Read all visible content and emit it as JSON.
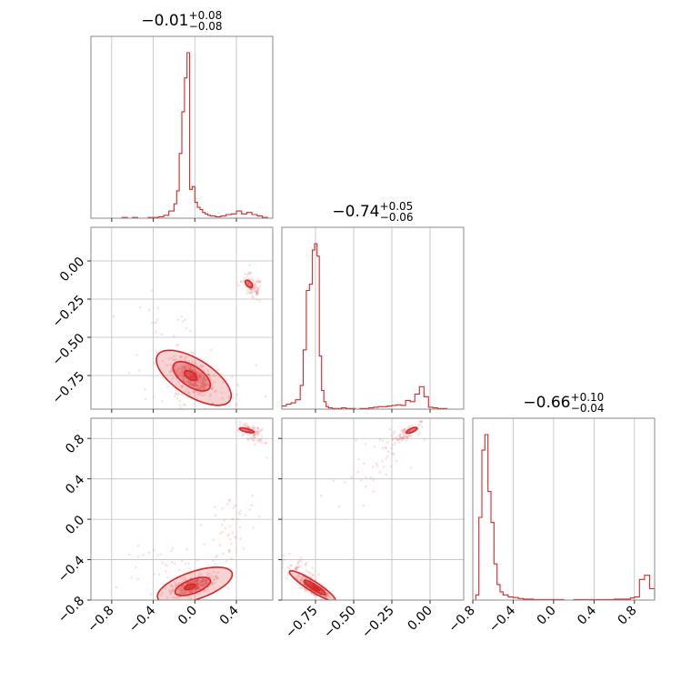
{
  "colors": {
    "accent": "#d62728",
    "grid": "#bdbdbd",
    "frame": "#888888"
  },
  "chart_data": {
    "type": "corner",
    "grid": true,
    "parameters": [
      {
        "range": [
          -1.0,
          0.75
        ],
        "ticks": [
          -0.8,
          -0.4,
          0.0,
          0.4
        ],
        "tick_labels": [
          "−0.8",
          "−0.4",
          "0.0",
          "0.4"
        ],
        "summary": {
          "median": "−0.01",
          "plus": "+0.08",
          "minus": "−0.08"
        },
        "histogram": {
          "bin_edges": [
            -1.0,
            -0.95,
            -0.9,
            -0.85,
            -0.8,
            -0.75,
            -0.7,
            -0.65,
            -0.6,
            -0.55,
            -0.5,
            -0.45,
            -0.4,
            -0.35,
            -0.3,
            -0.25,
            -0.2,
            -0.175,
            -0.15,
            -0.125,
            -0.1,
            -0.075,
            -0.05,
            -0.025,
            0.0,
            0.025,
            0.05,
            0.075,
            0.1,
            0.125,
            0.15,
            0.2,
            0.25,
            0.3,
            0.35,
            0.4,
            0.45,
            0.5,
            0.55,
            0.6,
            0.65,
            0.7,
            0.75
          ],
          "counts": [
            0,
            0,
            0,
            0,
            0,
            0,
            1,
            0,
            1,
            0,
            0,
            1,
            1,
            2,
            4,
            10,
            20,
            38,
            90,
            148,
            195,
            230,
            40,
            44,
            22,
            15,
            12,
            8,
            6,
            4,
            3,
            2,
            3,
            5,
            6,
            10,
            6,
            8,
            5,
            3,
            1,
            0
          ]
        }
      },
      {
        "range": [
          -0.97,
          0.22
        ],
        "ticks": [
          -0.75,
          -0.5,
          -0.25,
          0.0
        ],
        "tick_labels": [
          "−0.75",
          "−0.50",
          "−0.25",
          "0.00"
        ],
        "summary": {
          "median": "−0.74",
          "plus": "+0.05",
          "minus": "−0.06"
        },
        "histogram": {
          "bin_edges": [
            -0.97,
            -0.94,
            -0.91,
            -0.88,
            -0.85,
            -0.83,
            -0.81,
            -0.79,
            -0.77,
            -0.755,
            -0.74,
            -0.725,
            -0.71,
            -0.695,
            -0.68,
            -0.665,
            -0.64,
            -0.61,
            -0.58,
            -0.55,
            -0.52,
            -0.49,
            -0.46,
            -0.43,
            -0.4,
            -0.37,
            -0.34,
            -0.31,
            -0.28,
            -0.25,
            -0.22,
            -0.19,
            -0.16,
            -0.13,
            -0.1,
            -0.07,
            -0.04,
            -0.01,
            0.02,
            0.05,
            0.08,
            0.11,
            0.14,
            0.17,
            0.22
          ],
          "counts": [
            5,
            8,
            10,
            15,
            38,
            95,
            190,
            200,
            255,
            265,
            245,
            85,
            30,
            12,
            4,
            2,
            1,
            1,
            2,
            1,
            1,
            0,
            1,
            1,
            2,
            3,
            4,
            4,
            5,
            6,
            7,
            6,
            14,
            12,
            24,
            36,
            20,
            3,
            2,
            1,
            1,
            0,
            0,
            0
          ]
        }
      },
      {
        "range": [
          -0.8,
          1.0
        ],
        "ticks": [
          -0.8,
          -0.4,
          0.0,
          0.4,
          0.8
        ],
        "tick_labels": [
          "−0.8",
          "−0.4",
          "0.0",
          "0.4",
          "0.8"
        ],
        "summary": {
          "median": "−0.66",
          "plus": "+0.10",
          "minus": "−0.04"
        },
        "histogram": {
          "bin_edges": [
            -0.8,
            -0.77,
            -0.74,
            -0.71,
            -0.68,
            -0.65,
            -0.62,
            -0.59,
            -0.56,
            -0.53,
            -0.5,
            -0.45,
            -0.4,
            -0.35,
            -0.3,
            -0.2,
            -0.1,
            0.0,
            0.1,
            0.2,
            0.3,
            0.4,
            0.5,
            0.6,
            0.7,
            0.76,
            0.8,
            0.85,
            0.9,
            0.95,
            1.0
          ],
          "counts": [
            0,
            10,
            160,
            290,
            320,
            210,
            150,
            70,
            30,
            16,
            10,
            6,
            5,
            3,
            2,
            1,
            1,
            1,
            0,
            1,
            1,
            1,
            1,
            2,
            2,
            4,
            6,
            40,
            48,
            22
          ]
        }
      }
    ],
    "pairs": [
      {
        "row": 1,
        "col": 0,
        "clusters": [
          {
            "mean": [
              -0.02,
              -0.76
            ],
            "sd": [
              0.1,
              0.055
            ],
            "rho": -0.6,
            "n": 340
          },
          {
            "mean": [
              0.55,
              -0.17
            ],
            "sd": [
              0.05,
              0.045
            ],
            "rho": -0.4,
            "n": 90
          },
          {
            "mean": [
              0.08,
              -0.88
            ],
            "sd": [
              0.25,
              0.08
            ],
            "rho": -0.3,
            "n": 70
          },
          {
            "mean": [
              -0.2,
              -0.55
            ],
            "sd": [
              0.25,
              0.15
            ],
            "rho": -0.5,
            "n": 40
          }
        ],
        "contours": [
          {
            "level": 0.393,
            "mean": [
              -0.04,
              -0.75
            ],
            "sd": [
              0.06,
              0.032
            ],
            "rho": -0.55
          },
          {
            "level": 0.865,
            "mean": [
              -0.03,
              -0.755
            ],
            "sd": [
              0.09,
              0.048
            ],
            "rho": -0.6
          },
          {
            "level": 0.989,
            "mean": [
              -0.01,
              -0.765
            ],
            "sd": [
              0.12,
              0.06
            ],
            "rho": -0.65
          },
          {
            "level": 0.5,
            "mean": [
              0.52,
              -0.15
            ],
            "sd": [
              0.03,
              0.02
            ],
            "rho": -0.5
          }
        ]
      },
      {
        "row": 2,
        "col": 0,
        "clusters": [
          {
            "mean": [
              -0.02,
              -0.66
            ],
            "sd": [
              0.1,
              0.05
            ],
            "rho": 0.55,
            "n": 340
          },
          {
            "mean": [
              0.55,
              0.86
            ],
            "sd": [
              0.06,
              0.05
            ],
            "rho": -0.6,
            "n": 90
          },
          {
            "mean": [
              0.3,
              -0.2
            ],
            "sd": [
              0.15,
              0.3
            ],
            "rho": 0.7,
            "n": 60
          },
          {
            "mean": [
              -0.2,
              -0.5
            ],
            "sd": [
              0.25,
              0.15
            ],
            "rho": 0.3,
            "n": 40
          }
        ],
        "contours": [
          {
            "level": 0.393,
            "mean": [
              -0.05,
              -0.67
            ],
            "sd": [
              0.05,
              0.028
            ],
            "rho": 0.5
          },
          {
            "level": 0.865,
            "mean": [
              -0.02,
              -0.665
            ],
            "sd": [
              0.085,
              0.045
            ],
            "rho": 0.6
          },
          {
            "level": 0.989,
            "mean": [
              0.0,
              -0.655
            ],
            "sd": [
              0.12,
              0.06
            ],
            "rho": 0.6
          },
          {
            "level": 0.5,
            "mean": [
              0.5,
              0.88
            ],
            "sd": [
              0.06,
              0.02
            ],
            "rho": -0.7
          }
        ]
      },
      {
        "row": 2,
        "col": 1,
        "clusters": [
          {
            "mean": [
              -0.76,
              -0.68
            ],
            "sd": [
              0.045,
              0.045
            ],
            "rho": -0.8,
            "n": 340
          },
          {
            "mean": [
              -0.16,
              0.85
            ],
            "sd": [
              0.05,
              0.05
            ],
            "rho": 0.75,
            "n": 90
          },
          {
            "mean": [
              -0.85,
              -0.55
            ],
            "sd": [
              0.06,
              0.12
            ],
            "rho": -0.7,
            "n": 80
          },
          {
            "mean": [
              -0.35,
              0.55
            ],
            "sd": [
              0.15,
              0.2
            ],
            "rho": 0.6,
            "n": 40
          }
        ],
        "contours": [
          {
            "level": 0.393,
            "mean": [
              -0.745,
              -0.685
            ],
            "sd": [
              0.02,
              0.022
            ],
            "rho": -0.85
          },
          {
            "level": 0.865,
            "mean": [
              -0.755,
              -0.675
            ],
            "sd": [
              0.035,
              0.036
            ],
            "rho": -0.9
          },
          {
            "level": 0.989,
            "mean": [
              -0.77,
              -0.66
            ],
            "sd": [
              0.05,
              0.05
            ],
            "rho": -0.92
          },
          {
            "level": 0.5,
            "mean": [
              -0.12,
              0.88
            ],
            "sd": [
              0.03,
              0.025
            ],
            "rho": 0.7
          }
        ]
      }
    ]
  }
}
